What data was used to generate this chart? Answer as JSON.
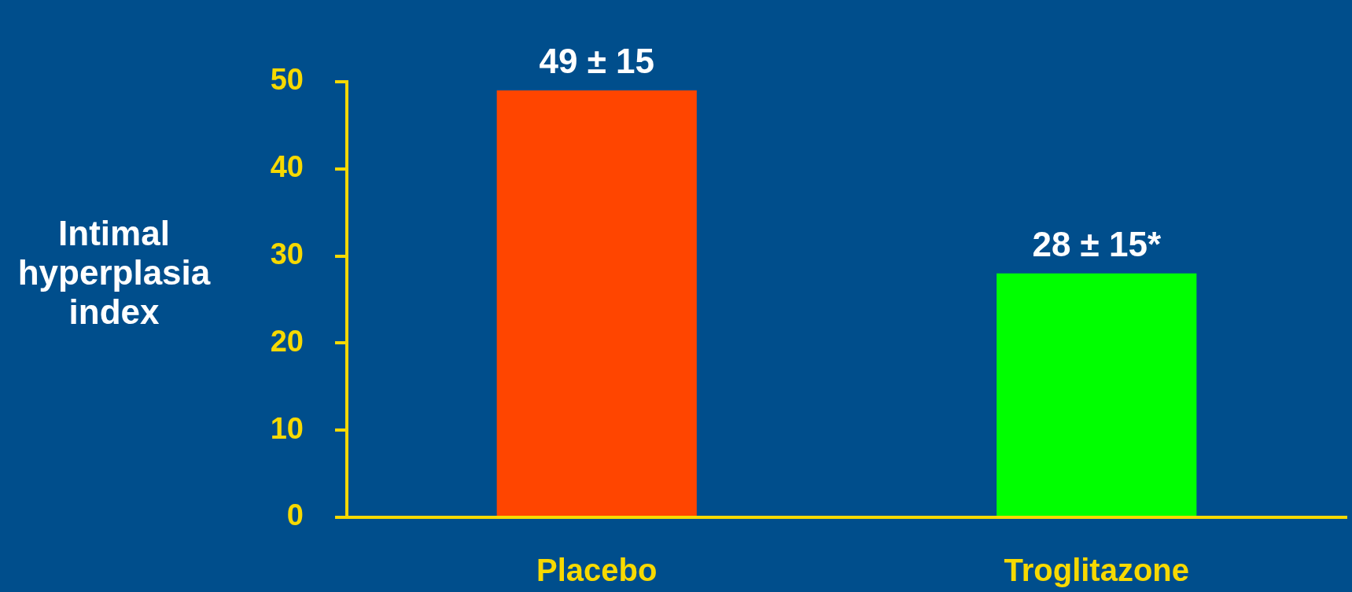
{
  "chart_data": {
    "type": "bar",
    "ylabel": "Intimal hyperplasia index",
    "categories": [
      "Placebo",
      "Troglitazone"
    ],
    "values": [
      49,
      28
    ],
    "colors": [
      "#ff4500",
      "#00ff00"
    ],
    "value_labels": [
      "49 ± 15",
      "28 ± 15*"
    ],
    "ylim": [
      0,
      50
    ],
    "yticks": [
      0,
      10,
      20,
      30,
      40,
      50
    ]
  }
}
